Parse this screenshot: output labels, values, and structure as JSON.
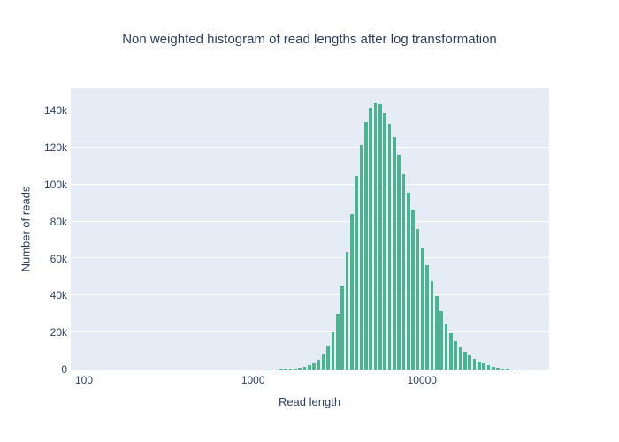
{
  "colors": {
    "bar": "#4CB391",
    "plot_background": "#e5ecf6",
    "gridline": "#ffffff",
    "text": "#2a3f5f",
    "page_background": "#ffffff"
  },
  "chart_data": {
    "type": "bar",
    "title": "Non weighted histogram of read lengths after log transformation",
    "xlabel": "Read length",
    "ylabel": "Number of reads",
    "x_axis": {
      "type": "log",
      "min_log10": 1.9215,
      "max_log10": 4.7518,
      "ticks": [
        {
          "value": 100,
          "label": "100"
        },
        {
          "value": 1000,
          "label": "1000"
        },
        {
          "value": 10000,
          "label": "10000"
        }
      ]
    },
    "y_axis": {
      "min": 0,
      "max": 152000,
      "grid": true,
      "ticks": [
        {
          "value": 0,
          "label": "0"
        },
        {
          "value": 20000,
          "label": "20k"
        },
        {
          "value": 40000,
          "label": "40k"
        },
        {
          "value": 60000,
          "label": "60k"
        },
        {
          "value": 80000,
          "label": "80k"
        },
        {
          "value": 100000,
          "label": "100k"
        },
        {
          "value": 120000,
          "label": "120k"
        },
        {
          "value": 140000,
          "label": "140k"
        }
      ]
    },
    "legend": "none",
    "bin_centers": [
      1208,
      1288,
      1374,
      1465,
      1562,
      1666,
      1777,
      1895,
      2021,
      2155,
      2298,
      2450,
      2613,
      2786,
      2971,
      3168,
      3379,
      3603,
      3842,
      4097,
      4369,
      4659,
      4968,
      5298,
      5649,
      6024,
      6424,
      6850,
      7305,
      7789,
      8306,
      8857,
      9445,
      10071,
      10740,
      11452,
      12212,
      13023,
      13887,
      14808,
      15791,
      16838,
      17956,
      19147,
      20417,
      21772,
      23217,
      24757,
      26400,
      28151,
      30019,
      32011,
      34135,
      36400,
      38816
    ],
    "values": [
      80,
      120,
      180,
      250,
      350,
      500,
      700,
      1000,
      1500,
      2200,
      3400,
      5200,
      8000,
      12900,
      20200,
      30100,
      45200,
      63500,
      83900,
      104800,
      121200,
      133900,
      141300,
      144400,
      143200,
      138700,
      132800,
      125700,
      116100,
      105700,
      95400,
      86600,
      76000,
      65900,
      56400,
      47600,
      39700,
      31700,
      24800,
      19500,
      15500,
      12000,
      9600,
      7600,
      5800,
      4500,
      3300,
      2300,
      1600,
      1000,
      600,
      350,
      200,
      120,
      70
    ]
  }
}
